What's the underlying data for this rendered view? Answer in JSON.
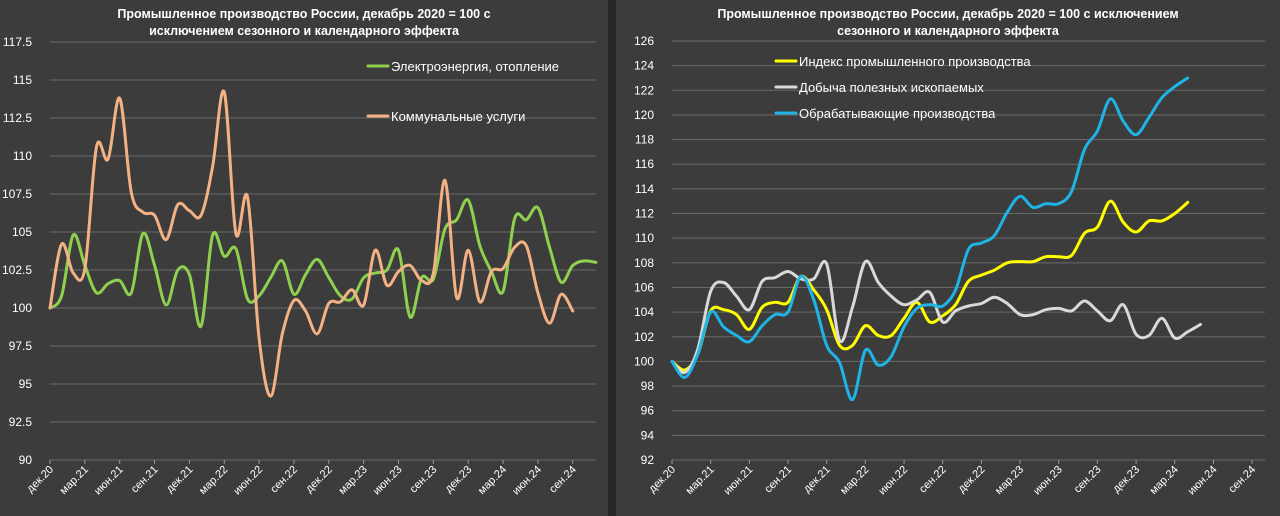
{
  "chart_data": [
    {
      "type": "line",
      "title": "Промышленное производство России, декабрь 2020 = 100 с исключением сезонного и календарного эффекта",
      "title_lines": [
        "Промышленное производство России, декабрь 2020 = 100 с",
        "исключением сезонного и календарного эффекта"
      ],
      "ylim": [
        90,
        117.5
      ],
      "yticks": [
        "117.5",
        "115",
        "112.5",
        "110",
        "107.5",
        "105",
        "102.5",
        "100",
        "97.5",
        "95",
        "92.5",
        "90"
      ],
      "ytick_values": [
        117.5,
        115,
        112.5,
        110,
        107.5,
        105,
        102.5,
        100,
        97.5,
        95,
        92.5,
        90
      ],
      "x_count": 48,
      "xticks": [
        "дек.20",
        "мар.21",
        "июн.21",
        "сен.21",
        "дек.21",
        "мар.22",
        "июн.22",
        "сен.22",
        "дек.22",
        "мар.23",
        "июн.23",
        "сен.23",
        "дек.23",
        "мар.24",
        "июн.24",
        "сен.24"
      ],
      "grid": true,
      "legend_position": "top-right",
      "series": [
        {
          "name": "Электроэнергия, отопление",
          "color": "#8fd14f",
          "values": [
            100,
            100.8,
            104.8,
            102.8,
            101,
            101.6,
            101.8,
            101,
            104.9,
            102.8,
            100.2,
            102.5,
            102.2,
            98.8,
            104.8,
            103.4,
            103.9,
            100.6,
            100.8,
            102,
            103.1,
            100.9,
            102.2,
            103.2,
            102,
            100.8,
            100.6,
            102,
            102.3,
            102.5,
            103.8,
            99.4,
            102,
            101.9,
            105.2,
            105.8,
            107.1,
            104.1,
            102.4,
            101.1,
            105.9,
            105.8,
            106.6,
            104,
            101.7,
            102.8,
            103.1,
            103
          ]
        },
        {
          "name": "Коммунальные услуги",
          "color": "#f4b183",
          "values": [
            100,
            104.2,
            102.3,
            102.6,
            110.6,
            109.8,
            113.8,
            107.6,
            106.3,
            106.1,
            104.5,
            106.8,
            106.4,
            106.1,
            109.3,
            114.2,
            104.9,
            107.3,
            98,
            94.2,
            98.3,
            100.5,
            99.8,
            98.3,
            100.3,
            100.4,
            101.2,
            100.2,
            103.8,
            101.5,
            102.4,
            102.8,
            101.8,
            102.3,
            108.4,
            100.7,
            103.8,
            100.4,
            102.4,
            102.6,
            104,
            104.1,
            101,
            99,
            100.9,
            99.8
          ]
        }
      ]
    },
    {
      "type": "line",
      "title": "Промышленное производство России, декабрь 2020 = 100 с исключением сезонного и календарного эффекта",
      "title_lines": [
        "Промышленное производство России, декабрь 2020 = 100 с исключением",
        "сезонного и календарного эффекта"
      ],
      "ylim": [
        92,
        126
      ],
      "yticks": [
        "126",
        "124",
        "122",
        "120",
        "118",
        "116",
        "114",
        "112",
        "110",
        "108",
        "106",
        "104",
        "102",
        "100",
        "98",
        "96",
        "94",
        "92"
      ],
      "ytick_values": [
        126,
        124,
        122,
        120,
        118,
        116,
        114,
        112,
        110,
        108,
        106,
        104,
        102,
        100,
        98,
        96,
        94,
        92
      ],
      "x_count": 47,
      "xticks": [
        "дек.20",
        "мар.21",
        "июн.21",
        "сен.21",
        "дек.21",
        "мар.22",
        "июн.22",
        "сен.22",
        "дек.22",
        "мар.23",
        "июн.23",
        "сен.23",
        "дек.23",
        "мар.24",
        "июн.24",
        "сен.24"
      ],
      "grid": true,
      "legend_position": "top-left",
      "series": [
        {
          "name": "Индекс промышленного производства",
          "color": "#ffff00",
          "values": [
            100,
            99.3,
            100.6,
            104.1,
            104.2,
            103.8,
            102.6,
            104.4,
            104.8,
            104.8,
            106.9,
            105.8,
            104.2,
            101.3,
            101.3,
            102.9,
            102.1,
            102.1,
            103.5,
            104.8,
            103.2,
            103.7,
            104.6,
            106.5,
            107,
            107.4,
            108,
            108.1,
            108.1,
            108.5,
            108.5,
            108.6,
            110.4,
            110.9,
            113,
            111.3,
            110.5,
            111.4,
            111.4,
            112,
            112.9
          ]
        },
        {
          "name": "Добыча полезных ископаемых",
          "color": "#d9d9d9",
          "values": [
            100,
            99.1,
            101,
            105.7,
            106.4,
            105.3,
            104.2,
            106.5,
            106.8,
            107.3,
            106.7,
            106.7,
            107.9,
            101.7,
            104.4,
            108.1,
            106.4,
            105.3,
            104.6,
            105,
            105.6,
            103.2,
            104.1,
            104.5,
            104.7,
            105.2,
            104.7,
            103.8,
            103.8,
            104.2,
            104.3,
            104.1,
            104.9,
            104.1,
            103.3,
            104.6,
            102.2,
            102.1,
            103.5,
            101.9,
            102.4,
            103
          ]
        },
        {
          "name": "Обрабатывающие производства",
          "color": "#1eb4e6",
          "values": [
            100,
            98.7,
            100.6,
            104,
            102.8,
            102.1,
            101.6,
            102.9,
            103.8,
            104,
            106.9,
            105,
            101.3,
            99.9,
            96.9,
            100.9,
            99.7,
            100.4,
            102.8,
            104.3,
            104.6,
            104.5,
            105.8,
            109.1,
            109.6,
            110.2,
            112.1,
            113.4,
            112.5,
            112.8,
            112.8,
            113.8,
            117.2,
            118.7,
            121.3,
            119.5,
            118.4,
            119.8,
            121.4,
            122.3,
            123
          ]
        }
      ]
    }
  ]
}
